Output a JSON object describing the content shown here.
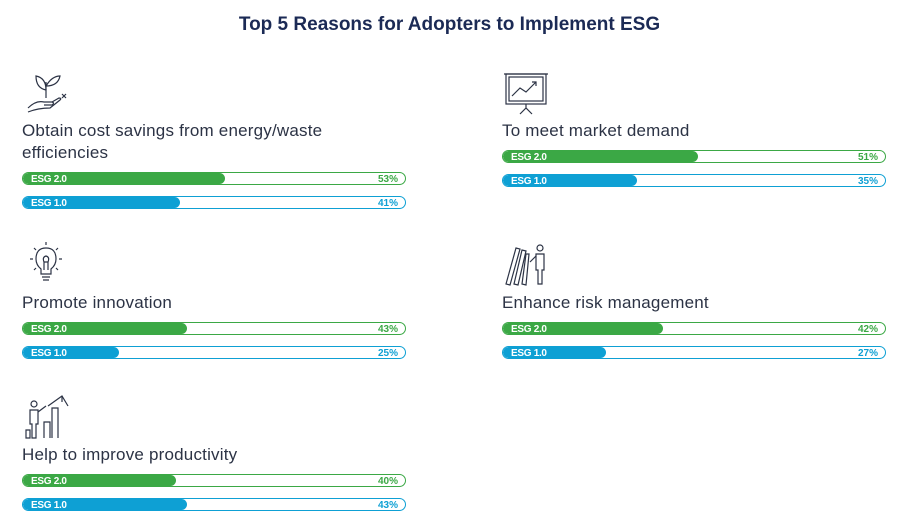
{
  "title": "Top 5 Reasons for Adopters to Implement ESG",
  "colors": {
    "esg2": "#3ba845",
    "esg1": "#0ea0d4",
    "title": "#1b2a55"
  },
  "chart_data": {
    "type": "bar",
    "title": "Top 5 Reasons for Adopters to Implement ESG",
    "xlabel": "",
    "ylabel": "",
    "ylim": [
      0,
      100
    ],
    "unit": "%",
    "categories": [
      "Obtain cost savings from energy/waste efficiencies",
      "To meet market demand",
      "Promote innovation",
      "Enhance risk management",
      "Help to improve productivity"
    ],
    "icons": [
      "plant-hand-icon",
      "presentation-chart-icon",
      "lightbulb-icon",
      "books-person-icon",
      "growth-person-icon"
    ],
    "series": [
      {
        "name": "ESG 2.0",
        "values": [
          53,
          51,
          43,
          42,
          40
        ],
        "labels": [
          "53%",
          "51%",
          "43%",
          "42%",
          "40%"
        ]
      },
      {
        "name": "ESG 1.0",
        "values": [
          41,
          35,
          25,
          27,
          43
        ],
        "labels": [
          "41%",
          "35%",
          "25%",
          "27%",
          "43%"
        ]
      }
    ]
  }
}
